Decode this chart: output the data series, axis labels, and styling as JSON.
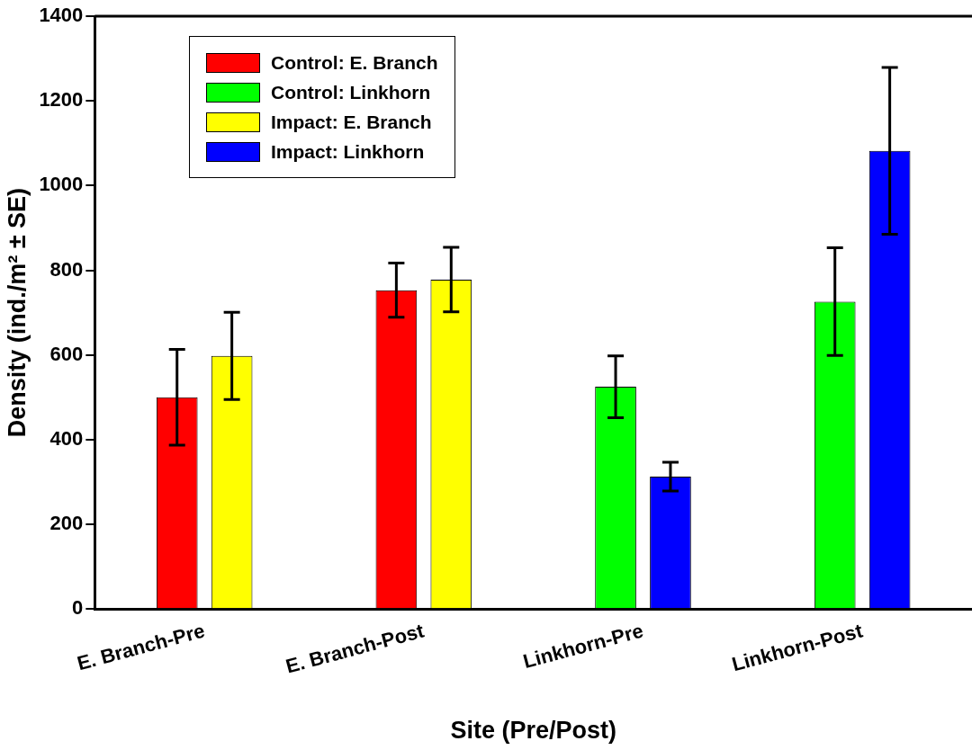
{
  "chart_data": {
    "type": "bar",
    "xlabel": "Site (Pre/Post)",
    "ylabel": "Density (ind./m² ± SE)",
    "categories": [
      "E. Branch-Pre",
      "E. Branch-Post",
      "Linkhorn-Pre",
      "Linkhorn-Post"
    ],
    "series": [
      {
        "name": "Control: E. Branch",
        "color": "#ff0000",
        "values": [
          500,
          753,
          null,
          null
        ],
        "errors": [
          113,
          64,
          null,
          null
        ]
      },
      {
        "name": "Control: Linkhorn",
        "color": "#00ff00",
        "values": [
          null,
          null,
          525,
          726
        ],
        "errors": [
          null,
          null,
          73,
          127
        ]
      },
      {
        "name": "Impact: E. Branch",
        "color": "#ffff00",
        "values": [
          598,
          778,
          null,
          null
        ],
        "errors": [
          103,
          76,
          null,
          null
        ]
      },
      {
        "name": "Impact: Linkhorn",
        "color": "#0000ff",
        "values": [
          null,
          null,
          313,
          1082
        ],
        "errors": [
          null,
          null,
          34,
          197
        ]
      }
    ],
    "ylim": [
      0,
      1400
    ],
    "yticks": [
      0,
      200,
      400,
      600,
      800,
      1000,
      1200,
      1400
    ],
    "grid": false,
    "legend": "top left"
  }
}
